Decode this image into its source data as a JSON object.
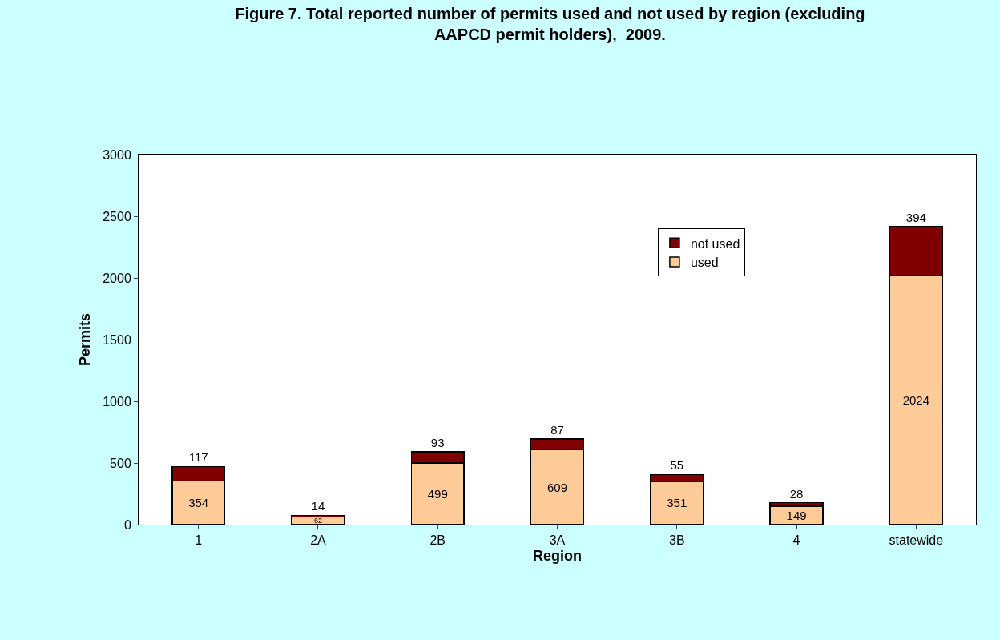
{
  "chart_data": {
    "type": "bar",
    "title": "Figure 7. Total reported number of permits used and not used by region (excluding AAPCD permit holders),  2009.",
    "xlabel": "Region",
    "ylabel": "Permits",
    "categories": [
      "1",
      "2A",
      "2B",
      "3A",
      "3B",
      "4",
      "statewide"
    ],
    "stacked": true,
    "series": [
      {
        "name": "used",
        "color": "#ffcc99",
        "values": [
          354,
          62,
          499,
          609,
          351,
          149,
          2024
        ]
      },
      {
        "name": "not used",
        "color": "#800000",
        "values": [
          117,
          14,
          93,
          87,
          55,
          28,
          394
        ]
      }
    ],
    "ylim": [
      0,
      3000
    ],
    "yticks": [
      0,
      500,
      1000,
      1500,
      2000,
      2500,
      3000
    ],
    "grid": false,
    "legend": "top right",
    "data_labels": true
  }
}
